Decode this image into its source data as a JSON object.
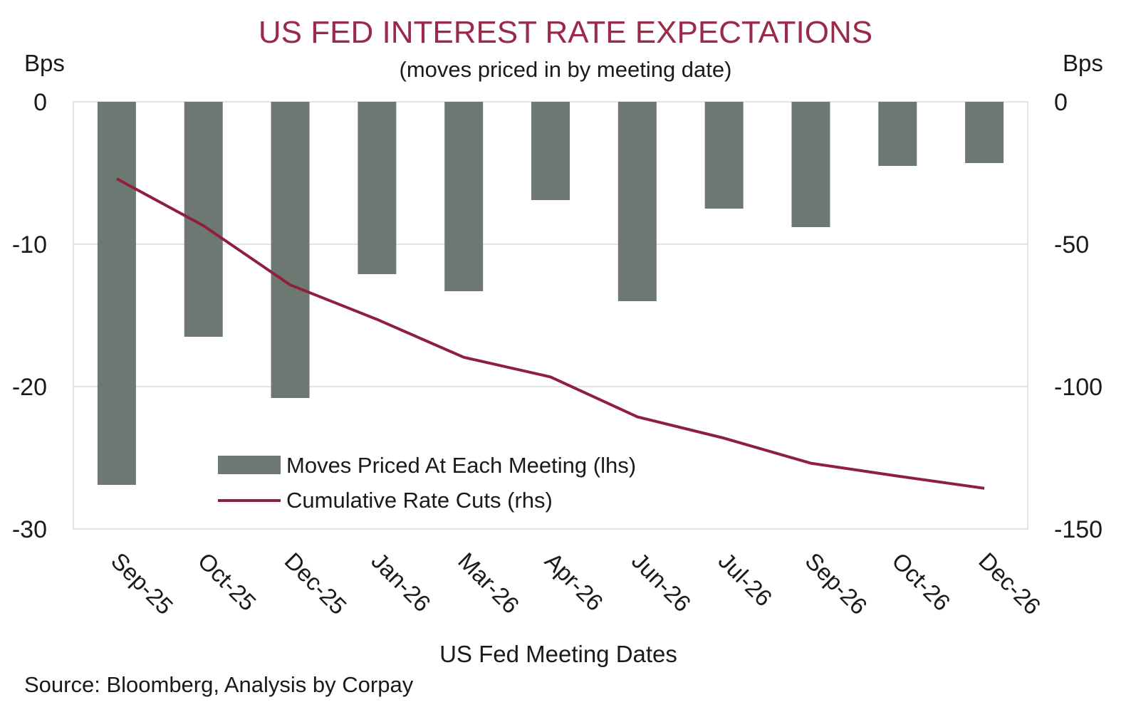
{
  "title": "US FED INTEREST RATE EXPECTATIONS",
  "subtitle": "(moves priced in by meeting date)",
  "source": "Source: Bloomberg, Analysis by Corpay",
  "colors": {
    "bar": "#6e7872",
    "line": "#8e1f3e",
    "title": "#9a2a4a",
    "grid": "#e3e3e3"
  },
  "chart_data": {
    "type": "bar",
    "xlabel": "US Fed Meeting Dates",
    "ylabel_left": "Bps",
    "ylabel_right": "Bps",
    "categories": [
      "Sep-25",
      "Oct-25",
      "Dec-25",
      "Jan-26",
      "Mar-26",
      "Apr-26",
      "Jun-26",
      "Jul-26",
      "Sep-26",
      "Oct-26",
      "Dec-26"
    ],
    "ylim_left": [
      -30,
      0
    ],
    "yticks_left": [
      0,
      -10,
      -20,
      -30
    ],
    "ylim_right": [
      -150,
      0
    ],
    "yticks_right": [
      0,
      -50,
      -100,
      -150
    ],
    "grid": true,
    "legend_position": "bottom-left",
    "series": [
      {
        "name": "Moves Priced At Each Meeting (lhs)",
        "type": "bar",
        "axis": "left",
        "values": [
          -26.9,
          -16.5,
          -20.8,
          -12.1,
          -13.3,
          -6.9,
          -14.0,
          -7.5,
          -8.8,
          -4.5,
          -4.3
        ]
      },
      {
        "name": "Cumulative Rate Cuts (rhs)",
        "type": "line",
        "axis": "right",
        "values": [
          -27,
          -43.5,
          -64.3,
          -76.4,
          -89.7,
          -96.6,
          -110.6,
          -118.1,
          -126.9,
          -131.4,
          -135.7
        ]
      }
    ]
  }
}
